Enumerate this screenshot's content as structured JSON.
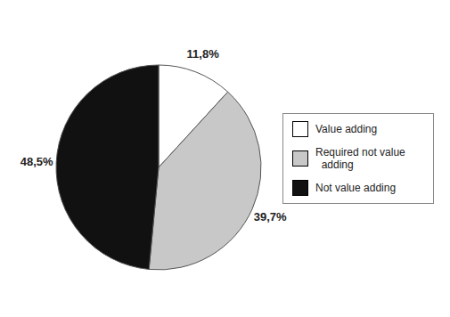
{
  "chart_data": {
    "type": "pie",
    "categories": [
      "Value adding",
      "Required not value\n  adding",
      "Not value adding"
    ],
    "values": [
      11.8,
      39.7,
      48.5
    ],
    "value_labels": [
      "11,8%",
      "39,7%",
      "48,5%"
    ],
    "colors": [
      "#ffffff",
      "#c8c8c8",
      "#111111"
    ],
    "data_labels": true,
    "legend": "right"
  }
}
